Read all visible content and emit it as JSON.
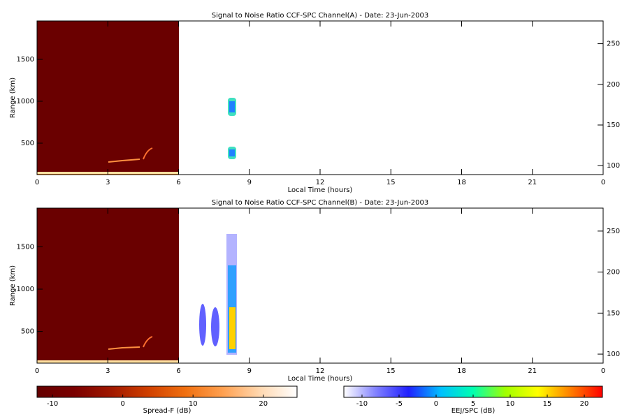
{
  "chart_data": [
    {
      "type": "heatmap",
      "title": "Signal to Noise Ratio CCF-SPC Channel(A) - Date: 23-Jun-2003",
      "xlabel": "Local Time (hours)",
      "ylabel": "Range (km)",
      "xlim": [
        0,
        24
      ],
      "xticks": [
        0,
        3,
        6,
        9,
        12,
        15,
        18,
        21,
        {
          "value": 24,
          "label": "0"
        }
      ],
      "ylim": [
        125,
        1958
      ],
      "yticks": [
        500,
        1000,
        1500
      ],
      "y2lim": [
        89,
        278
      ],
      "y2ticks": [
        100,
        150,
        200,
        250
      ]
    },
    {
      "type": "heatmap",
      "title": "Signal to Noise Ratio CCF-SPC Channel(B) - Date: 23-Jun-2003",
      "xlabel": "Local Time (hours)",
      "ylabel": "Range (km)",
      "xlim": [
        0,
        24
      ],
      "xticks": [
        0,
        3,
        6,
        9,
        12,
        15,
        18,
        21,
        {
          "value": 24,
          "label": "0"
        }
      ],
      "ylim": [
        125,
        1958
      ],
      "yticks": [
        500,
        1000,
        1500
      ],
      "y2lim": [
        89,
        278
      ],
      "y2ticks": [
        100,
        150,
        200,
        250
      ]
    },
    {
      "type": "colorbar",
      "label": "Spread-F (dB)",
      "xlim": [
        -12.2,
        24.8
      ],
      "xticks": [
        -10,
        0,
        10,
        20
      ],
      "colors": [
        "#640000",
        "#7a0000",
        "#a01800",
        "#d04000",
        "#f07010",
        "#ffa050",
        "#ffd8b0",
        "#ffffff"
      ]
    },
    {
      "type": "colorbar",
      "label": "EEJ/SPC (dB)",
      "xlim": [
        -12.45,
        22.45
      ],
      "xticks": [
        -10,
        -5,
        0,
        5,
        10,
        15,
        20
      ],
      "colors": [
        "#ffffff",
        "#8080ff",
        "#2020ff",
        "#00c0ff",
        "#00ffb0",
        "#a0ff00",
        "#ffff00",
        "#ff8000",
        "#ff0000"
      ]
    }
  ]
}
